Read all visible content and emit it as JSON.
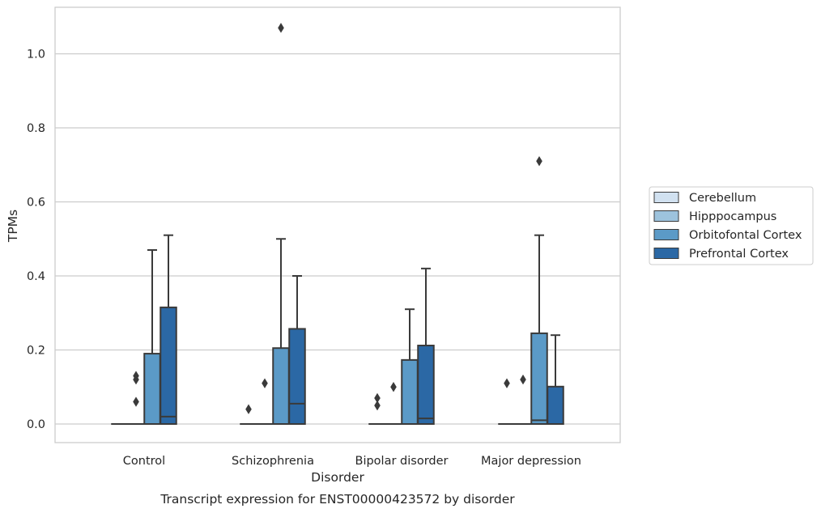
{
  "chart_data": {
    "type": "box",
    "title": "",
    "caption": "Transcript expression for ENST00000423572 by disorder",
    "xlabel": "Disorder",
    "ylabel": "TPMs",
    "ylim": [
      -0.05,
      1.13
    ],
    "yticks": [
      0.0,
      0.2,
      0.4,
      0.6,
      0.8,
      1.0
    ],
    "ytick_labels": [
      "0.0",
      "0.2",
      "0.4",
      "0.6",
      "0.8",
      "1.0"
    ],
    "grid": "horizontal",
    "legend_position": "right",
    "categories": [
      "Control",
      "Schizophrenia",
      "Bipolar disorder",
      "Major depression"
    ],
    "series": [
      {
        "name": "Cerebellum",
        "color": "#d1e1f0",
        "boxes": [
          {
            "q1": 0,
            "median": 0,
            "q3": 0,
            "whisker_low": 0,
            "whisker_high": 0,
            "outliers": []
          },
          {
            "q1": 0,
            "median": 0,
            "q3": 0,
            "whisker_low": 0,
            "whisker_high": 0,
            "outliers": [
              0.04
            ]
          },
          {
            "q1": 0,
            "median": 0,
            "q3": 0,
            "whisker_low": 0,
            "whisker_high": 0,
            "outliers": [
              0.05,
              0.07
            ]
          },
          {
            "q1": 0,
            "median": 0,
            "q3": 0,
            "whisker_low": 0,
            "whisker_high": 0,
            "outliers": [
              0.11
            ]
          }
        ]
      },
      {
        "name": "Hipppocampus",
        "color": "#9dc3dd",
        "boxes": [
          {
            "q1": 0,
            "median": 0,
            "q3": 0,
            "whisker_low": 0,
            "whisker_high": 0,
            "outliers": [
              0.06,
              0.12,
              0.13
            ]
          },
          {
            "q1": 0,
            "median": 0,
            "q3": 0,
            "whisker_low": 0,
            "whisker_high": 0,
            "outliers": [
              0.11
            ]
          },
          {
            "q1": 0,
            "median": 0,
            "q3": 0,
            "whisker_low": 0,
            "whisker_high": 0,
            "outliers": [
              0.1
            ]
          },
          {
            "q1": 0,
            "median": 0,
            "q3": 0,
            "whisker_low": 0,
            "whisker_high": 0,
            "outliers": [
              0.12
            ]
          }
        ]
      },
      {
        "name": "Orbitofontal Cortex",
        "color": "#5b9ac7",
        "boxes": [
          {
            "q1": 0,
            "median": 0,
            "q3": 0.19,
            "whisker_low": 0,
            "whisker_high": 0.47,
            "outliers": []
          },
          {
            "q1": 0,
            "median": 0,
            "q3": 0.205,
            "whisker_low": 0,
            "whisker_high": 0.5,
            "outliers": [
              1.07
            ]
          },
          {
            "q1": 0,
            "median": 0,
            "q3": 0.173,
            "whisker_low": 0,
            "whisker_high": 0.31,
            "outliers": []
          },
          {
            "q1": 0,
            "median": 0.01,
            "q3": 0.245,
            "whisker_low": 0,
            "whisker_high": 0.51,
            "outliers": [
              0.71
            ]
          }
        ]
      },
      {
        "name": "Prefrontal Cortex",
        "color": "#2b68a5",
        "boxes": [
          {
            "q1": 0,
            "median": 0.02,
            "q3": 0.315,
            "whisker_low": 0,
            "whisker_high": 0.51,
            "outliers": []
          },
          {
            "q1": 0,
            "median": 0.055,
            "q3": 0.257,
            "whisker_low": 0,
            "whisker_high": 0.4,
            "outliers": []
          },
          {
            "q1": 0,
            "median": 0.015,
            "q3": 0.212,
            "whisker_low": 0,
            "whisker_high": 0.42,
            "outliers": []
          },
          {
            "q1": 0,
            "median": 0,
            "q3": 0.101,
            "whisker_low": 0,
            "whisker_high": 0.24,
            "outliers": []
          }
        ]
      }
    ]
  },
  "colors": {
    "edge": "#3a3a3a",
    "grid": "#cccccc",
    "frame": "#cccccc",
    "text": "#262626"
  }
}
